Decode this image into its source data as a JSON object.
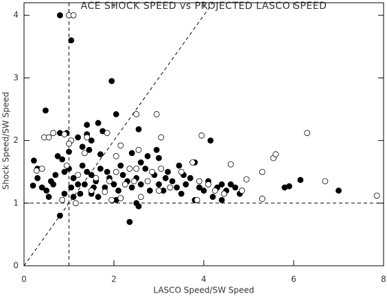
{
  "chart_data": {
    "type": "scatter",
    "title": "ACE SHOCK SPEED vs PROJECTED LASCO SPEED",
    "x_label": "LASCO Speed/SW Speed",
    "y_label": "Shock Speed/SW Speed",
    "xlim": [
      0,
      8
    ],
    "ylim": [
      0,
      4.2
    ],
    "xticks": [
      0,
      2,
      4,
      6,
      8
    ],
    "yticks": [
      0,
      1,
      2,
      3,
      4
    ],
    "hlines": [
      1
    ],
    "vlines": [
      1
    ],
    "diagonal": true,
    "series": [
      {
        "color": "#000000",
        "filled": true,
        "x": [
          0.8,
          1.05,
          1.95,
          0.48,
          2.05,
          1.4,
          1.65,
          2.55,
          1.75,
          0.8,
          0.95,
          1.2,
          1.4,
          1.5,
          1.3,
          1.45,
          1.0,
          1.7,
          2.4,
          2.95,
          4.15,
          3.0,
          0.75,
          0.85,
          0.3,
          0.22,
          0.2,
          0.4,
          0.5,
          0.6,
          0.7,
          0.9,
          1.0,
          1.1,
          1.2,
          1.3,
          1.4,
          1.5,
          1.6,
          1.7,
          1.8,
          1.9,
          2.0,
          2.1,
          2.2,
          2.3,
          2.4,
          2.5,
          2.6,
          2.7,
          2.8,
          2.9,
          3.0,
          3.1,
          3.2,
          3.3,
          3.4,
          3.5,
          3.6,
          3.7,
          3.8,
          3.9,
          4.0,
          4.1,
          4.2,
          4.3,
          4.4,
          4.5,
          4.6,
          4.7,
          4.8,
          5.8,
          5.9,
          6.15,
          7.0,
          0.8,
          2.35,
          2.55,
          2.5,
          1.1,
          0.9,
          1.5,
          1.65,
          2.05,
          3.8,
          4.4,
          0.3,
          0.55,
          0.65,
          1.05,
          1.25,
          1.35,
          1.55,
          1.85,
          2.15,
          2.6,
          3.15,
          3.45,
          2.75,
          3.55
        ],
        "values": [
          4.0,
          3.6,
          2.95,
          2.48,
          2.42,
          2.25,
          2.28,
          2.18,
          2.15,
          2.12,
          2.12,
          2.05,
          2.1,
          2.0,
          1.9,
          1.85,
          1.82,
          1.78,
          1.8,
          1.85,
          2.0,
          1.72,
          1.75,
          1.7,
          1.55,
          1.68,
          1.28,
          1.25,
          1.2,
          1.35,
          1.45,
          1.5,
          1.55,
          1.4,
          1.3,
          1.6,
          1.5,
          1.45,
          1.35,
          1.55,
          1.25,
          1.4,
          1.3,
          1.2,
          1.45,
          1.35,
          1.25,
          1.4,
          1.3,
          1.55,
          1.2,
          1.45,
          1.3,
          1.2,
          1.5,
          1.35,
          1.25,
          1.15,
          1.3,
          1.4,
          1.65,
          1.25,
          1.2,
          1.35,
          1.1,
          1.25,
          1.3,
          1.2,
          1.3,
          1.25,
          1.15,
          1.25,
          1.27,
          1.37,
          1.2,
          0.8,
          0.7,
          0.95,
          1.0,
          1.1,
          1.15,
          1.15,
          1.1,
          1.05,
          1.05,
          1.05,
          1.4,
          1.1,
          1.3,
          1.25,
          1.15,
          1.3,
          1.25,
          1.5,
          1.6,
          1.65,
          1.4,
          1.6,
          1.75,
          1.45
        ]
      },
      {
        "color": "#000000",
        "filled": false,
        "x": [
          1.0,
          1.1,
          2.95,
          2.5,
          0.45,
          0.55,
          0.65,
          0.9,
          1.05,
          1.4,
          1.85,
          2.15,
          2.55,
          3.05,
          3.95,
          1.0,
          1.35,
          2.05,
          2.35,
          4.6,
          5.3,
          5.55,
          5.6,
          6.3,
          0.28,
          0.4,
          0.95,
          1.2,
          1.6,
          1.9,
          2.25,
          2.5,
          2.75,
          3.05,
          3.25,
          3.5,
          3.75,
          3.9,
          4.1,
          4.25,
          4.45,
          4.85,
          4.95,
          5.3,
          6.7,
          7.85,
          0.85,
          1.15,
          1.95,
          2.15,
          2.6,
          3.0,
          3.85,
          1.5,
          1.8,
          2.05,
          2.45,
          2.85
        ],
        "values": [
          4.0,
          4.0,
          2.42,
          2.42,
          2.05,
          2.05,
          2.12,
          2.1,
          2.0,
          2.05,
          2.12,
          1.92,
          1.85,
          2.05,
          2.08,
          1.95,
          1.8,
          1.75,
          1.55,
          1.62,
          1.5,
          1.72,
          1.78,
          2.12,
          1.52,
          1.55,
          1.6,
          1.45,
          1.4,
          1.35,
          1.3,
          1.55,
          1.35,
          1.55,
          1.25,
          1.5,
          1.65,
          1.35,
          1.3,
          1.2,
          1.15,
          1.2,
          1.38,
          1.07,
          1.35,
          1.12,
          1.05,
          1.0,
          1.05,
          1.08,
          1.1,
          1.2,
          1.05,
          1.2,
          1.18,
          1.5,
          1.35,
          1.5
        ]
      }
    ]
  }
}
